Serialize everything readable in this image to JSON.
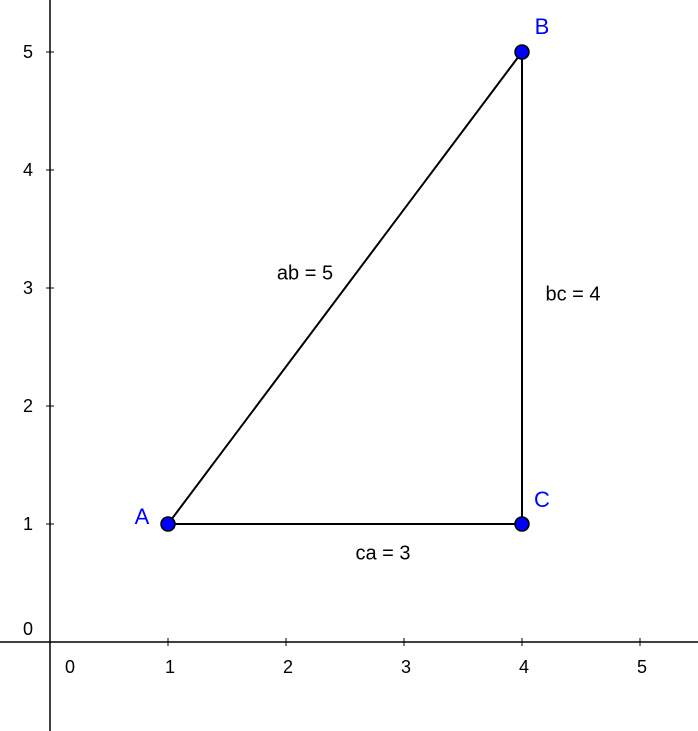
{
  "axes": {
    "xticks": [
      0,
      1,
      2,
      3,
      4,
      5
    ],
    "yticks": [
      0,
      1,
      2,
      3,
      4,
      5
    ]
  },
  "points": [
    {
      "label": "A",
      "x": 1,
      "y": 1
    },
    {
      "label": "B",
      "x": 4,
      "y": 5
    },
    {
      "label": "C",
      "x": 4,
      "y": 1
    }
  ],
  "segments": [
    {
      "label": "ab = 5"
    },
    {
      "label": "bc = 4"
    },
    {
      "label": "ca = 3"
    }
  ]
}
